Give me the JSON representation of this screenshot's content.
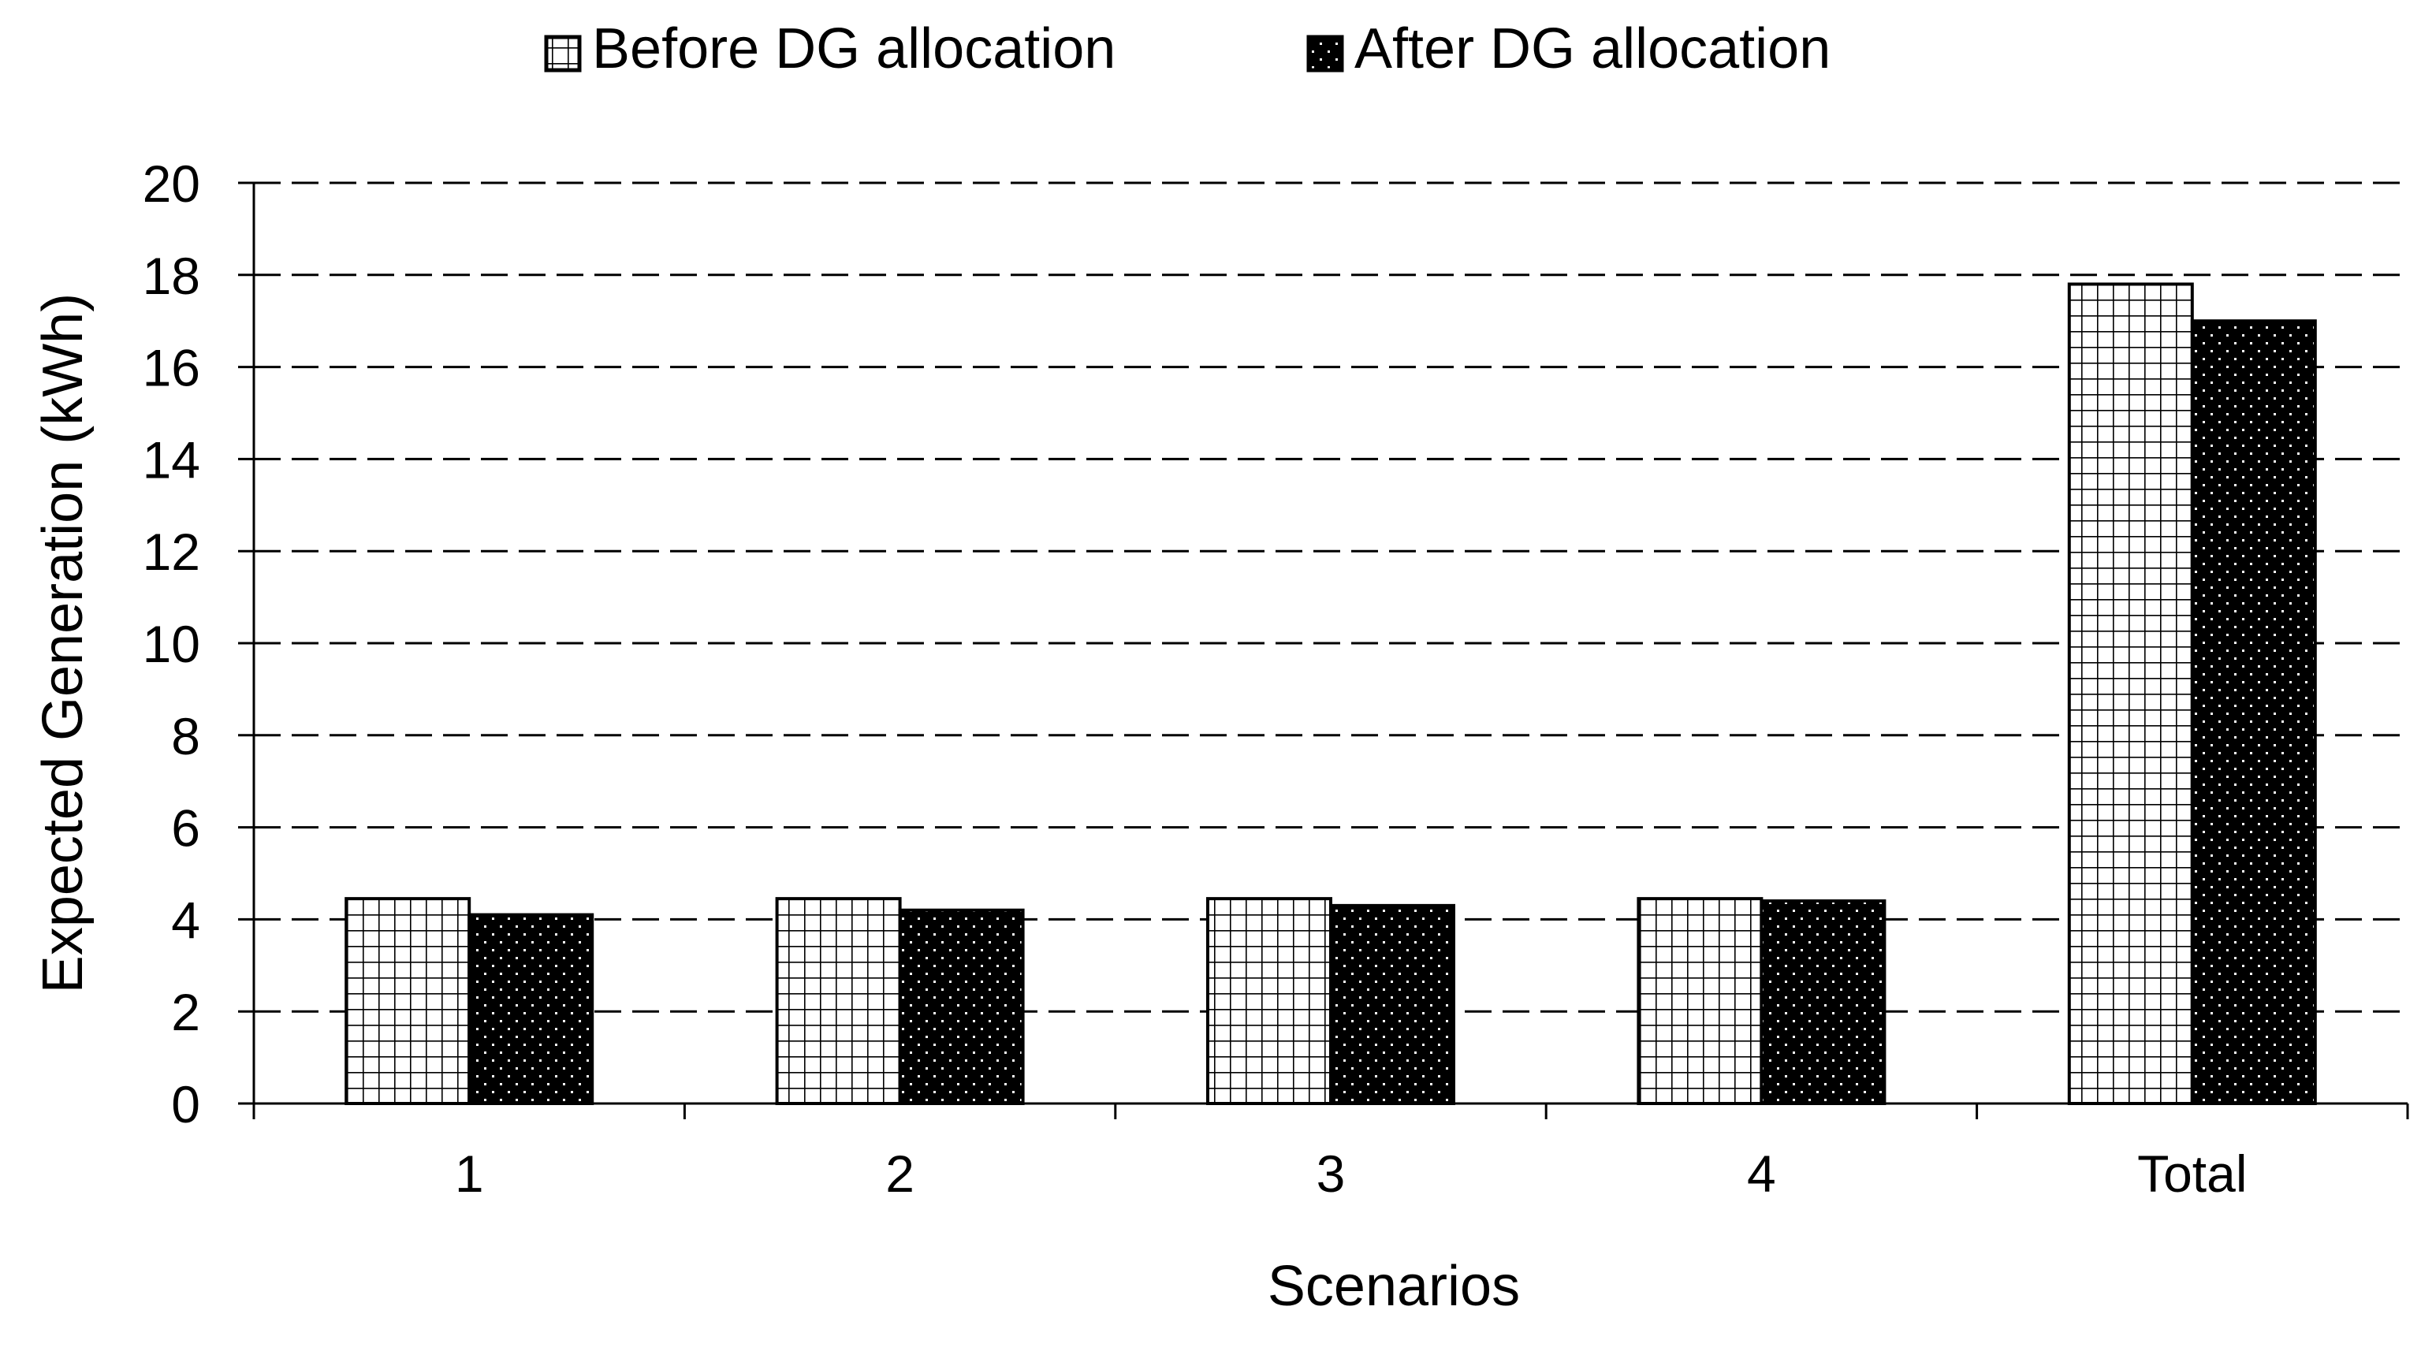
{
  "chart_data": {
    "type": "bar",
    "title": "",
    "xlabel": "Scenarios",
    "ylabel": "Expected Generation (kWh)",
    "categories": [
      "1",
      "2",
      "3",
      "4",
      "Total"
    ],
    "series": [
      {
        "name": "Before DG allocation",
        "pattern": "grid",
        "values": [
          4.45,
          4.45,
          4.45,
          4.45,
          17.8
        ]
      },
      {
        "name": "After DG allocation",
        "pattern": "dots",
        "values": [
          4.1,
          4.2,
          4.3,
          4.4,
          17.0
        ]
      }
    ],
    "ylim": [
      0,
      20
    ],
    "yticks": [
      "0",
      "2",
      "4",
      "6",
      "8",
      "10",
      "12",
      "14",
      "16",
      "18",
      "20"
    ],
    "grid": "dashed horizontal",
    "legend_position": "top-center"
  },
  "colors": {
    "background": "#ffffff",
    "ink": "#000000"
  }
}
